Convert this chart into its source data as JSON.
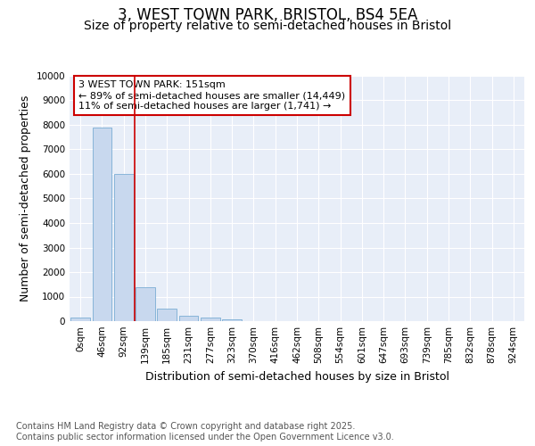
{
  "title_line1": "3, WEST TOWN PARK, BRISTOL, BS4 5EA",
  "title_line2": "Size of property relative to semi-detached houses in Bristol",
  "xlabel": "Distribution of semi-detached houses by size in Bristol",
  "ylabel": "Number of semi-detached properties",
  "categories": [
    "0sqm",
    "46sqm",
    "92sqm",
    "139sqm",
    "185sqm",
    "231sqm",
    "277sqm",
    "323sqm",
    "370sqm",
    "416sqm",
    "462sqm",
    "508sqm",
    "554sqm",
    "601sqm",
    "647sqm",
    "693sqm",
    "739sqm",
    "785sqm",
    "832sqm",
    "878sqm",
    "924sqm"
  ],
  "values": [
    150,
    7900,
    6000,
    1400,
    500,
    220,
    130,
    60,
    0,
    0,
    0,
    0,
    0,
    0,
    0,
    0,
    0,
    0,
    0,
    0,
    0
  ],
  "bar_color": "#c8d8ee",
  "bar_edge_color": "#7aadd4",
  "vline_color": "#cc0000",
  "vline_x_idx": 2.5,
  "annotation_text": "3 WEST TOWN PARK: 151sqm\n← 89% of semi-detached houses are smaller (14,449)\n11% of semi-detached houses are larger (1,741) →",
  "annotation_box_color": "#ffffff",
  "annotation_box_edge": "#cc0000",
  "ylim": [
    0,
    10000
  ],
  "yticks": [
    0,
    1000,
    2000,
    3000,
    4000,
    5000,
    6000,
    7000,
    8000,
    9000,
    10000
  ],
  "background_color": "#ffffff",
  "plot_bg_color": "#e8eef8",
  "grid_color": "#ffffff",
  "footnote": "Contains HM Land Registry data © Crown copyright and database right 2025.\nContains public sector information licensed under the Open Government Licence v3.0.",
  "title_fontsize": 12,
  "subtitle_fontsize": 10,
  "axis_label_fontsize": 9,
  "tick_fontsize": 7.5,
  "annotation_fontsize": 8,
  "footnote_fontsize": 7
}
